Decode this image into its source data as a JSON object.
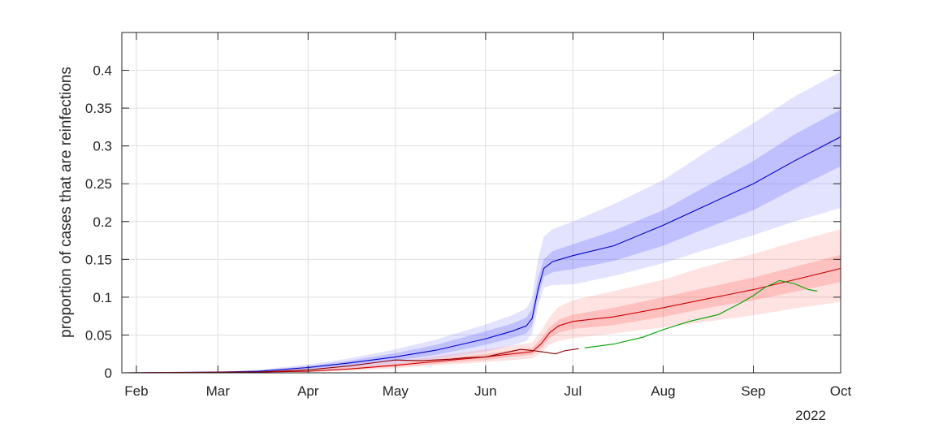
{
  "chart_data": {
    "type": "area",
    "title": "",
    "xlabel": "",
    "ylabel": "proportion of cases that are reinfections",
    "year_label": "2022",
    "xlim": [
      "2022-01-27",
      "2022-10-01"
    ],
    "ylim": [
      0,
      0.45
    ],
    "grid": true,
    "legend": "none",
    "x_ticks": [
      {
        "date": "2022-02-01",
        "label": "Feb"
      },
      {
        "date": "2022-03-01",
        "label": "Mar"
      },
      {
        "date": "2022-04-01",
        "label": "Apr"
      },
      {
        "date": "2022-05-01",
        "label": "May"
      },
      {
        "date": "2022-06-01",
        "label": "Jun"
      },
      {
        "date": "2022-07-01",
        "label": "Jul"
      },
      {
        "date": "2022-08-01",
        "label": "Aug"
      },
      {
        "date": "2022-09-01",
        "label": "Sep"
      },
      {
        "date": "2022-10-01",
        "label": "Oct"
      }
    ],
    "y_ticks": [
      {
        "value": 0,
        "label": "0"
      },
      {
        "value": 0.05,
        "label": "0.05"
      },
      {
        "value": 0.1,
        "label": "0.1"
      },
      {
        "value": 0.15,
        "label": "0.15"
      },
      {
        "value": 0.2,
        "label": "0.2"
      },
      {
        "value": 0.25,
        "label": "0.25"
      },
      {
        "value": 0.3,
        "label": "0.3"
      },
      {
        "value": 0.35,
        "label": "0.35"
      },
      {
        "value": 0.4,
        "label": "0.4"
      }
    ],
    "series": [
      {
        "color": "#0000c8",
        "band_color": "#6464ff",
        "x": [
          "2022-01-27",
          "2022-03-01",
          "2022-03-15",
          "2022-04-01",
          "2022-04-15",
          "2022-05-01",
          "2022-05-15",
          "2022-06-01",
          "2022-06-10",
          "2022-06-15",
          "2022-06-17",
          "2022-06-19",
          "2022-06-21",
          "2022-06-24",
          "2022-07-01",
          "2022-07-15",
          "2022-08-01",
          "2022-08-15",
          "2022-09-01",
          "2022-09-15",
          "2022-10-01"
        ],
        "y": [
          0,
          0.001,
          0.002,
          0.007,
          0.013,
          0.021,
          0.03,
          0.045,
          0.055,
          0.062,
          0.072,
          0.11,
          0.138,
          0.147,
          0.155,
          0.168,
          0.195,
          0.22,
          0.25,
          0.28,
          0.312
        ],
        "inner_lower": [
          0,
          0.001,
          0.002,
          0.005,
          0.01,
          0.016,
          0.024,
          0.037,
          0.046,
          0.052,
          0.062,
          0.1,
          0.127,
          0.133,
          0.137,
          0.148,
          0.168,
          0.19,
          0.215,
          0.243,
          0.273
        ],
        "inner_upper": [
          0,
          0.001,
          0.003,
          0.009,
          0.016,
          0.026,
          0.037,
          0.055,
          0.065,
          0.073,
          0.085,
          0.125,
          0.15,
          0.161,
          0.17,
          0.188,
          0.215,
          0.245,
          0.28,
          0.315,
          0.348
        ],
        "outer_lower": [
          0,
          0.001,
          0.002,
          0.003,
          0.007,
          0.012,
          0.018,
          0.028,
          0.036,
          0.042,
          0.052,
          0.087,
          0.113,
          0.116,
          0.117,
          0.128,
          0.145,
          0.162,
          0.182,
          0.2,
          0.218
        ],
        "outer_upper": [
          0,
          0.001,
          0.004,
          0.011,
          0.019,
          0.031,
          0.044,
          0.064,
          0.076,
          0.085,
          0.1,
          0.15,
          0.18,
          0.19,
          0.2,
          0.223,
          0.255,
          0.29,
          0.33,
          0.365,
          0.398
        ]
      },
      {
        "color": "#c80000",
        "band_color": "#ff6464",
        "x": [
          "2022-01-27",
          "2022-03-15",
          "2022-04-01",
          "2022-04-15",
          "2022-05-01",
          "2022-05-15",
          "2022-06-01",
          "2022-06-10",
          "2022-06-17",
          "2022-06-20",
          "2022-06-23",
          "2022-06-26",
          "2022-07-01",
          "2022-07-15",
          "2022-08-01",
          "2022-08-15",
          "2022-09-01",
          "2022-09-15",
          "2022-10-01"
        ],
        "y": [
          0,
          0.001,
          0.002,
          0.005,
          0.01,
          0.015,
          0.021,
          0.025,
          0.028,
          0.038,
          0.053,
          0.062,
          0.068,
          0.074,
          0.086,
          0.097,
          0.11,
          0.123,
          0.138
        ],
        "inner_lower": [
          0,
          0.001,
          0.001,
          0.004,
          0.008,
          0.012,
          0.017,
          0.021,
          0.024,
          0.032,
          0.046,
          0.053,
          0.058,
          0.063,
          0.074,
          0.085,
          0.096,
          0.107,
          0.12
        ],
        "inner_upper": [
          0,
          0.001,
          0.003,
          0.007,
          0.012,
          0.018,
          0.025,
          0.03,
          0.033,
          0.045,
          0.06,
          0.07,
          0.077,
          0.086,
          0.1,
          0.112,
          0.126,
          0.14,
          0.156
        ],
        "outer_lower": [
          0,
          0.001,
          0.001,
          0.003,
          0.006,
          0.01,
          0.014,
          0.017,
          0.019,
          0.026,
          0.037,
          0.042,
          0.046,
          0.052,
          0.06,
          0.067,
          0.076,
          0.085,
          0.094
        ],
        "outer_upper": [
          0,
          0.001,
          0.004,
          0.009,
          0.015,
          0.022,
          0.031,
          0.036,
          0.04,
          0.055,
          0.074,
          0.087,
          0.096,
          0.108,
          0.123,
          0.14,
          0.157,
          0.173,
          0.19
        ]
      },
      {
        "color": "#8b0000",
        "x": [
          "2022-01-27",
          "2022-03-15",
          "2022-04-01",
          "2022-04-15",
          "2022-04-25",
          "2022-05-01",
          "2022-05-10",
          "2022-05-20",
          "2022-05-25",
          "2022-06-01",
          "2022-06-07",
          "2022-06-13",
          "2022-06-18",
          "2022-06-22",
          "2022-06-25",
          "2022-06-28",
          "2022-07-03"
        ],
        "y": [
          0,
          0.001,
          0.004,
          0.009,
          0.014,
          0.017,
          0.016,
          0.018,
          0.02,
          0.021,
          0.026,
          0.031,
          0.029,
          0.027,
          0.025,
          0.029,
          0.032
        ]
      },
      {
        "color": "#00a000",
        "x": [
          "2022-07-05",
          "2022-07-15",
          "2022-07-25",
          "2022-08-01",
          "2022-08-10",
          "2022-08-20",
          "2022-08-28",
          "2022-09-01",
          "2022-09-05",
          "2022-09-10",
          "2022-09-15",
          "2022-09-20",
          "2022-09-23"
        ],
        "y": [
          0.033,
          0.038,
          0.047,
          0.057,
          0.068,
          0.077,
          0.093,
          0.102,
          0.113,
          0.122,
          0.118,
          0.11,
          0.108
        ]
      }
    ]
  }
}
